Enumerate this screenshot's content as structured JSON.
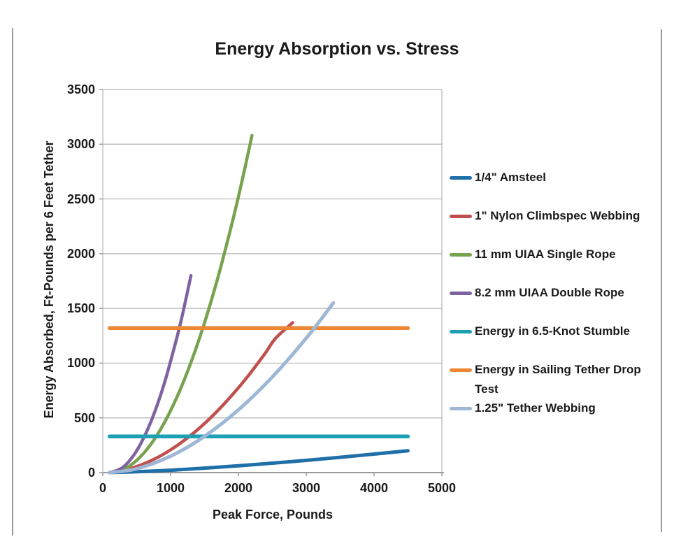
{
  "page": {
    "background": "#ffffff",
    "border_color": "#9a9a9a"
  },
  "chart_data": {
    "type": "line",
    "title": "Energy Absorption vs. Stress",
    "xlabel": "Peak Force, Pounds",
    "ylabel": "Energy Absorbed, Ft-Pounds per 6 Feet Tether",
    "xlim": [
      0,
      5000
    ],
    "ylim": [
      0,
      3500
    ],
    "x_ticks": [
      0,
      1000,
      2000,
      3000,
      4000,
      5000
    ],
    "y_ticks": [
      0,
      500,
      1000,
      1500,
      2000,
      2500,
      3000,
      3500
    ],
    "grid": "horizontal",
    "legend_position": "right",
    "axis_color": "#9a9a9a",
    "grid_color": "#b3b3b3",
    "text_color": "#1a1a1a",
    "series": [
      {
        "name": "1/4\" Amsteel",
        "color": "#1F6FA8",
        "line_width": 5,
        "points": [
          [
            100,
            0
          ],
          [
            500,
            8
          ],
          [
            1000,
            22
          ],
          [
            1500,
            41
          ],
          [
            2000,
            62
          ],
          [
            2500,
            86
          ],
          [
            3000,
            112
          ],
          [
            3500,
            140
          ],
          [
            4000,
            169
          ],
          [
            4500,
            200
          ]
        ]
      },
      {
        "name": "1\" Nylon Climbspec Webbing",
        "color": "#C0504D",
        "line_width": 4.5,
        "points": [
          [
            100,
            0
          ],
          [
            400,
            36
          ],
          [
            650,
            92
          ],
          [
            900,
            170
          ],
          [
            1150,
            271
          ],
          [
            1400,
            393
          ],
          [
            1650,
            537
          ],
          [
            1900,
            703
          ],
          [
            2150,
            888
          ],
          [
            2400,
            1095
          ],
          [
            2550,
            1229
          ],
          [
            2800,
            1370
          ]
        ]
      },
      {
        "name": "11 mm UIAA Single Rope",
        "color": "#77A24E",
        "line_width": 4.5,
        "points": [
          [
            100,
            0
          ],
          [
            300,
            28
          ],
          [
            500,
            112
          ],
          [
            700,
            251
          ],
          [
            900,
            447
          ],
          [
            1100,
            698
          ],
          [
            1300,
            1006
          ],
          [
            1500,
            1369
          ],
          [
            1700,
            1788
          ],
          [
            1900,
            2263
          ],
          [
            2050,
            2656
          ],
          [
            2200,
            3080
          ]
        ]
      },
      {
        "name": "8.2 mm UIAA Double Rope",
        "color": "#7E62A1",
        "line_width": 4.5,
        "points": [
          [
            100,
            0
          ],
          [
            300,
            50
          ],
          [
            500,
            200
          ],
          [
            700,
            450
          ],
          [
            900,
            800
          ],
          [
            1100,
            1250
          ],
          [
            1200,
            1512
          ],
          [
            1300,
            1800
          ]
        ]
      },
      {
        "name": "Energy in 6.5-Knot Stumble",
        "color": "#1D9FB4",
        "line_width": 5.5,
        "points": [
          [
            100,
            330
          ],
          [
            4500,
            330
          ]
        ]
      },
      {
        "name": "Energy in Sailing Tether Drop Test",
        "color": "#ED8733",
        "line_width": 5.5,
        "points": [
          [
            100,
            1320
          ],
          [
            4500,
            1320
          ]
        ]
      },
      {
        "name": "1.25\" Tether Webbing",
        "color": "#9DB7D5",
        "line_width": 5,
        "points": [
          [
            100,
            0
          ],
          [
            500,
            35
          ],
          [
            1000,
            150
          ],
          [
            1500,
            331
          ],
          [
            2000,
            573
          ],
          [
            2500,
            874
          ],
          [
            3000,
            1228
          ],
          [
            3400,
            1550
          ]
        ]
      }
    ]
  }
}
